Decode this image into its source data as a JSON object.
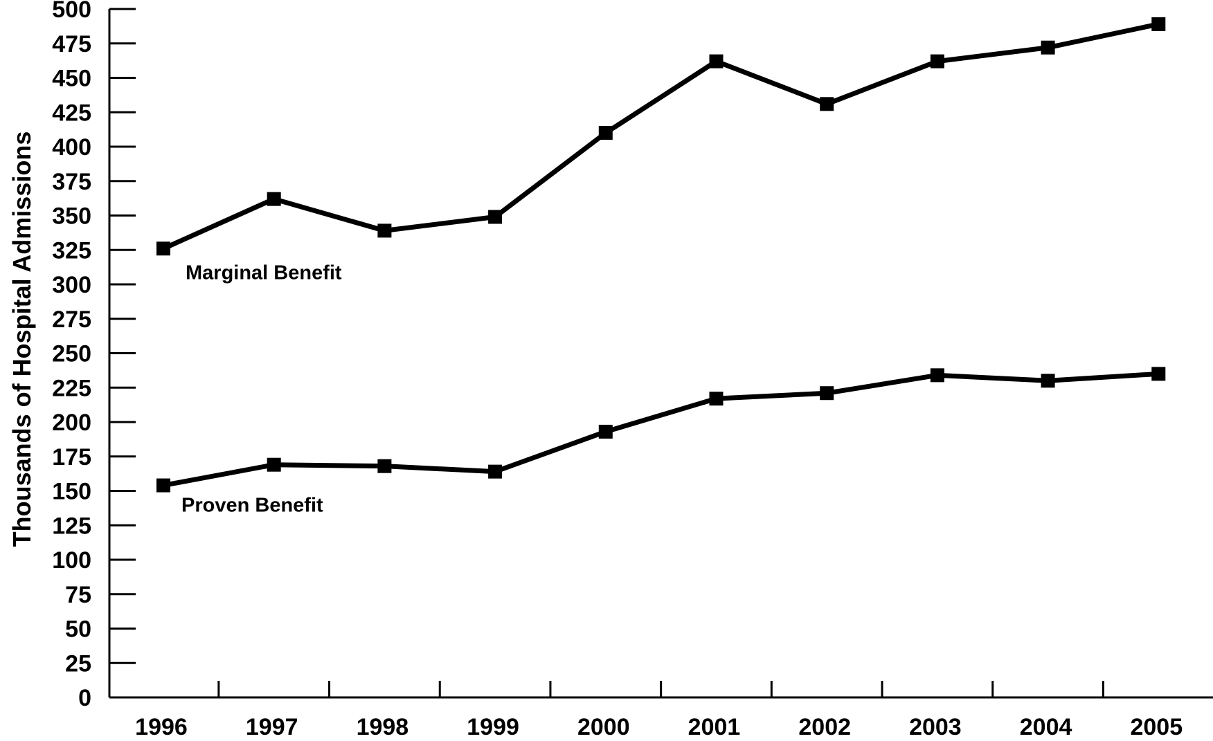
{
  "chart_data": {
    "type": "line",
    "title": "",
    "xlabel": "",
    "ylabel": "Thousands of Hospital Admissions",
    "ylim": [
      0,
      500
    ],
    "y_ticks": [
      "0",
      "25",
      "50",
      "75",
      "100",
      "125",
      "150",
      "175",
      "200",
      "225",
      "250",
      "275",
      "300",
      "325",
      "350",
      "375",
      "400",
      "425",
      "450",
      "475",
      "500"
    ],
    "categories": [
      "1996",
      "1997",
      "1998",
      "1999",
      "2000",
      "2001",
      "2002",
      "2003",
      "2004",
      "2005"
    ],
    "series": [
      {
        "name": "Marginal Benefit",
        "values": [
          326,
          362,
          339,
          349,
          410,
          462,
          431,
          462,
          472,
          489
        ]
      },
      {
        "name": "Proven Benefit",
        "values": [
          154,
          169,
          168,
          164,
          193,
          217,
          221,
          234,
          230,
          235
        ]
      }
    ],
    "grid": false,
    "legend": "inline labels below series start",
    "line_color": "#000000",
    "marker": "square"
  }
}
